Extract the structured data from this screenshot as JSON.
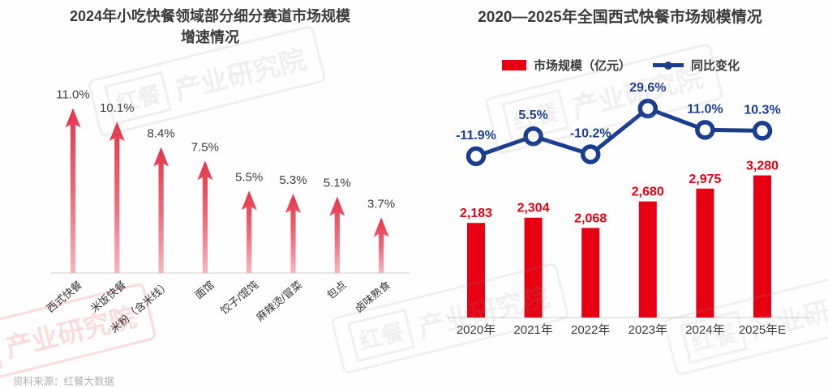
{
  "source_note": "资料来源：红餐大数据",
  "watermark": {
    "brand": "红餐",
    "suffix": "产业研究院"
  },
  "colors": {
    "bar_red": "#e60012",
    "arrow_red_top": "#e5344a",
    "arrow_red_bottom": "#f7b6bd",
    "line_navy": "#1b3d8f",
    "label_dark": "#3f3f3f",
    "axis_gray": "#d8d8d8"
  },
  "chart_data": [
    {
      "type": "bar",
      "bar_style": "arrow",
      "title": "2024年小吃快餐领域部分细分赛道市场规模增速情况",
      "title_lines": [
        "2024年小吃快餐领域部分细分赛道市场规模",
        "增速情况"
      ],
      "categories": [
        "西式快餐",
        "米饭快餐",
        "米粉（含米线）",
        "面馆",
        "饺子/馄饨",
        "麻辣烫/冒菜",
        "包点",
        "卤味熟食"
      ],
      "values": [
        11.0,
        10.1,
        8.4,
        7.5,
        5.5,
        5.3,
        5.1,
        3.7
      ],
      "labels": [
        "11.0%",
        "10.1%",
        "8.4%",
        "7.5%",
        "5.5%",
        "5.3%",
        "5.1%",
        "3.7%"
      ],
      "xlabel": "",
      "ylabel": "",
      "ylim": [
        0,
        12
      ],
      "grid": false,
      "legend": false
    },
    {
      "type": "bar+line",
      "title": "2020—2025年全国西式快餐市场规模情况",
      "categories": [
        "2020年",
        "2021年",
        "2022年",
        "2023年",
        "2024年",
        "2025年E"
      ],
      "series": [
        {
          "name": "市场规模（亿元）",
          "type": "bar",
          "values": [
            2183,
            2304,
            2068,
            2680,
            2975,
            3280
          ],
          "labels": [
            "2,183",
            "2,304",
            "2,068",
            "2,680",
            "2,975",
            "3,280"
          ],
          "color": "#e60012"
        },
        {
          "name": "同比变化",
          "type": "line",
          "values": [
            -11.9,
            5.5,
            -10.2,
            29.6,
            11.0,
            10.3
          ],
          "labels": [
            "-11.9%",
            "5.5%",
            "-10.2%",
            "29.6%",
            "11.0%",
            "10.3%"
          ],
          "color": "#1b3d8f"
        }
      ],
      "xlabel": "",
      "ylabel": "",
      "ylim": [
        0,
        3600
      ],
      "grid": false,
      "legend_position": "top"
    }
  ]
}
